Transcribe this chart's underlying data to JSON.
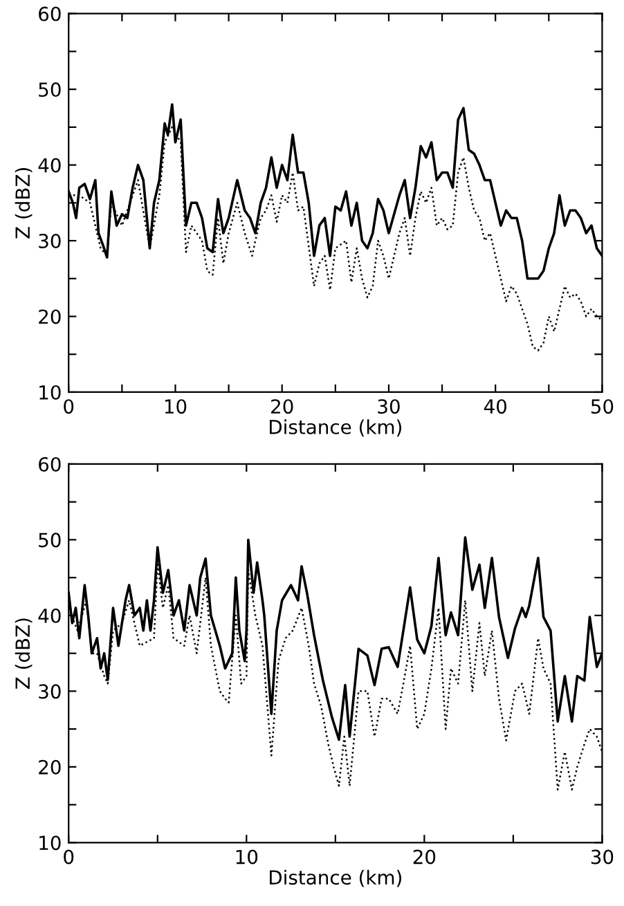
{
  "chart_data": [
    {
      "type": "line",
      "xlabel": "Distance (km)",
      "ylabel": "Z (dBZ)",
      "xlim": [
        0,
        50
      ],
      "ylim": [
        10,
        60
      ],
      "grid": false,
      "xticks": [
        0,
        {
          "value": 5,
          "label": null
        },
        10,
        {
          "value": 15,
          "label": null
        },
        20,
        {
          "value": 25,
          "label": null
        },
        30,
        {
          "value": 35,
          "label": null
        },
        40,
        {
          "value": 45,
          "label": null
        },
        50
      ],
      "yticks": [
        10,
        {
          "value": 15,
          "label": null
        },
        20,
        {
          "value": 25,
          "label": null
        },
        30,
        {
          "value": 35,
          "label": null
        },
        40,
        {
          "value": 45,
          "label": null
        },
        50,
        {
          "value": 55,
          "label": null
        },
        60
      ],
      "series": [
        {
          "color": "#000000",
          "line_style": "solid",
          "x": [
            0,
            0.4,
            0.7,
            1,
            1.5,
            2,
            2.5,
            2.8,
            3.2,
            3.6,
            4,
            4.5,
            5,
            5.5,
            6,
            6.5,
            7,
            7.6,
            8,
            8.5,
            9,
            9.3,
            9.7,
            10,
            10.5,
            11,
            11.5,
            12,
            12.5,
            13,
            13.5,
            14,
            14.5,
            15,
            15.8,
            16.5,
            17,
            17.5,
            18,
            18.5,
            19,
            19.5,
            20,
            20.5,
            21,
            21.5,
            22,
            22.5,
            23,
            23.5,
            24,
            24.5,
            25,
            25.5,
            26,
            26.5,
            27,
            27.5,
            28,
            28.5,
            29,
            29.5,
            30,
            31,
            31.5,
            32,
            32.5,
            33,
            33.5,
            34,
            34.5,
            35,
            35.5,
            36,
            36.5,
            37,
            37.5,
            38,
            38.5,
            39,
            39.5,
            40,
            40.5,
            41,
            41.5,
            42,
            42.5,
            43,
            43.5,
            44,
            44.5,
            45,
            45.5,
            46,
            46.5,
            47,
            47.5,
            48,
            48.5,
            49,
            49.5,
            50
          ],
          "values": [
            36.5,
            35,
            33,
            37,
            37.5,
            35.5,
            38,
            31,
            29.5,
            27.8,
            36.5,
            32,
            33.5,
            33,
            37,
            40,
            38,
            29,
            35,
            38,
            45.5,
            44,
            48,
            43,
            46,
            32,
            35,
            35,
            33,
            29,
            28.5,
            35.5,
            31,
            33,
            38,
            34,
            33,
            31,
            35,
            37,
            41,
            37,
            40,
            38,
            44,
            39,
            39,
            35,
            28,
            32,
            33,
            28,
            34.5,
            34,
            36.5,
            32,
            35,
            30,
            29,
            31,
            35.5,
            34,
            31,
            36,
            38,
            33,
            37,
            42.5,
            41,
            43,
            38,
            39,
            39,
            37,
            46,
            47.5,
            42,
            41.5,
            40,
            38,
            38,
            35,
            32,
            34,
            33,
            33,
            30,
            25,
            25,
            25,
            26,
            29,
            31,
            36,
            32,
            34,
            34,
            33,
            31,
            32,
            29,
            28
          ]
        },
        {
          "color": "#000000",
          "line_style": "dotted",
          "x": [
            0,
            1,
            2,
            3,
            3.6,
            4,
            5,
            6,
            6.5,
            7.6,
            8.5,
            9,
            9.7,
            10.5,
            11,
            11.5,
            12,
            12.5,
            13,
            13.5,
            14,
            14.5,
            15,
            15.8,
            16.5,
            17.2,
            17.5,
            18,
            18.5,
            19,
            19.5,
            20,
            20.5,
            21,
            21.5,
            22,
            23,
            23.5,
            24,
            24.5,
            25,
            26,
            26.5,
            27,
            27.5,
            28,
            28.5,
            29,
            29.5,
            30,
            31,
            31.5,
            32,
            32.5,
            33,
            33.5,
            34,
            34.5,
            35,
            35.5,
            36,
            36.5,
            37,
            37.5,
            38,
            38.5,
            39,
            39.5,
            40,
            40.5,
            41,
            41.5,
            42,
            42.5,
            43,
            43.5,
            44,
            44.5,
            45,
            45.5,
            46,
            46.5,
            47,
            47.5,
            48,
            48.5,
            49,
            49.5,
            50
          ],
          "values": [
            36,
            36,
            35,
            29,
            28,
            35,
            32,
            36,
            38,
            29,
            36,
            43,
            45,
            43,
            28.5,
            32,
            31,
            30,
            26,
            25.5,
            33,
            27,
            31,
            35,
            31,
            28,
            30,
            33,
            34,
            36,
            32.5,
            36,
            35,
            39,
            34,
            34.5,
            24,
            27,
            28,
            23.5,
            29,
            30,
            24.5,
            29,
            25,
            22.5,
            24,
            30,
            28,
            25,
            31,
            33,
            28,
            33,
            36.5,
            35,
            37,
            32,
            33,
            31.5,
            32,
            39,
            41,
            37,
            34,
            33,
            30,
            31,
            28,
            25,
            22,
            24,
            23,
            21,
            19,
            16,
            15.5,
            16.5,
            20,
            18,
            21,
            24,
            22.5,
            23,
            22,
            20,
            21,
            20,
            19.5
          ]
        }
      ]
    },
    {
      "type": "line",
      "xlabel": "Distance (km)",
      "ylabel": "Z (dBZ)",
      "xlim": [
        0,
        30
      ],
      "ylim": [
        10,
        60
      ],
      "grid": false,
      "xticks": [
        0,
        {
          "value": 5,
          "label": null
        },
        10,
        {
          "value": 15,
          "label": null
        },
        20,
        {
          "value": 25,
          "label": null
        },
        30
      ],
      "yticks": [
        10,
        {
          "value": 15,
          "label": null
        },
        20,
        {
          "value": 25,
          "label": null
        },
        30,
        {
          "value": 35,
          "label": null
        },
        40,
        {
          "value": 45,
          "label": null
        },
        50,
        {
          "value": 55,
          "label": null
        },
        60
      ],
      "series": [
        {
          "color": "#000000",
          "line_style": "solid",
          "x": [
            0,
            0.2,
            0.4,
            0.6,
            0.9,
            1.1,
            1.3,
            1.6,
            1.8,
            2,
            2.2,
            2.5,
            2.8,
            3.2,
            3.4,
            3.7,
            4,
            4.2,
            4.4,
            4.6,
            4.8,
            5,
            5.3,
            5.6,
            5.9,
            6.2,
            6.5,
            6.8,
            7.2,
            7.4,
            7.7,
            8,
            8.5,
            8.8,
            9.2,
            9.4,
            9.6,
            9.9,
            10,
            10.1,
            10.4,
            10.6,
            10.9,
            11,
            11.4,
            11.7,
            12,
            12.5,
            12.9,
            13.1,
            13.4,
            13.8,
            14.3,
            14.8,
            15.2,
            15.55,
            15.8,
            16.3,
            16.8,
            17.2,
            17.6,
            18,
            18.5,
            18.9,
            19.2,
            19.6,
            20,
            20.4,
            20.8,
            21.2,
            21.5,
            21.9,
            22.3,
            22.7,
            23.1,
            23.4,
            23.8,
            24.2,
            24.7,
            25.1,
            25.5,
            25.7,
            25.9,
            26.4,
            26.7,
            27.1,
            27.5,
            27.9,
            28.3,
            28.6,
            29,
            29.3,
            29.7,
            30
          ],
          "values": [
            43,
            39,
            41,
            37,
            44,
            40,
            35,
            37,
            33,
            35,
            31.5,
            41,
            36,
            42,
            44,
            40,
            41,
            38,
            42,
            38,
            42,
            49,
            43,
            46,
            40,
            42,
            38,
            44,
            40,
            45,
            47.5,
            40,
            36,
            33,
            35,
            45,
            38,
            34,
            38,
            50,
            43,
            47,
            42,
            40,
            27,
            38,
            42,
            44,
            42,
            46.5,
            43,
            37.4,
            31.4,
            26.6,
            23.6,
            30.8,
            24,
            35.6,
            34.7,
            30.8,
            35.6,
            35.8,
            33.2,
            39.2,
            43.7,
            36.8,
            35,
            38.6,
            47.6,
            37.4,
            40.4,
            37.4,
            50.3,
            43.4,
            46.7,
            41,
            47.6,
            39.8,
            34.4,
            38.3,
            41,
            39.8,
            41.3,
            47.6,
            39.8,
            38,
            26,
            32,
            26,
            32,
            31.4,
            39.8,
            33.2,
            35
          ]
        },
        {
          "color": "#000000",
          "line_style": "dotted",
          "x": [
            0,
            0.5,
            1,
            1.3,
            1.6,
            2,
            2.2,
            2.5,
            3,
            3.4,
            3.8,
            4,
            4.4,
            4.8,
            5,
            5.3,
            5.6,
            5.9,
            6.5,
            6.8,
            7.2,
            7.7,
            8,
            8.5,
            8.8,
            9,
            9.4,
            9.7,
            10,
            10.1,
            10.5,
            10.9,
            11.4,
            11.8,
            12.2,
            12.6,
            13.1,
            13.5,
            13.8,
            14.2,
            14.6,
            14.9,
            15.2,
            15.5,
            15.8,
            16.3,
            16.8,
            17.2,
            17.6,
            18,
            18.5,
            18.9,
            19.2,
            19.6,
            20,
            20.4,
            20.8,
            21.2,
            21.5,
            21.9,
            22.3,
            22.7,
            23.1,
            23.4,
            23.8,
            24.2,
            24.6,
            25.1,
            25.5,
            25.9,
            26.4,
            26.7,
            27.1,
            27.5,
            27.9,
            28.3,
            28.6,
            29,
            29.3,
            29.7,
            30
          ],
          "values": [
            41,
            38,
            42,
            35,
            35,
            32,
            31,
            38,
            39,
            42,
            38,
            36,
            36.5,
            37,
            47,
            41,
            44,
            37,
            36,
            40,
            35,
            45,
            36,
            30,
            29,
            28.5,
            40,
            31,
            32,
            46,
            40,
            36,
            21.5,
            34,
            37,
            38,
            41,
            36,
            31,
            28,
            23,
            20,
            17.5,
            24,
            17.5,
            30,
            30,
            24,
            29,
            29,
            27,
            32,
            36,
            25,
            27,
            33,
            41,
            25,
            33,
            31,
            42,
            30,
            39,
            32,
            38,
            29,
            23.5,
            30,
            31,
            27,
            37,
            33,
            31,
            17,
            22,
            17,
            20,
            23,
            25,
            24,
            22
          ]
        }
      ]
    }
  ]
}
